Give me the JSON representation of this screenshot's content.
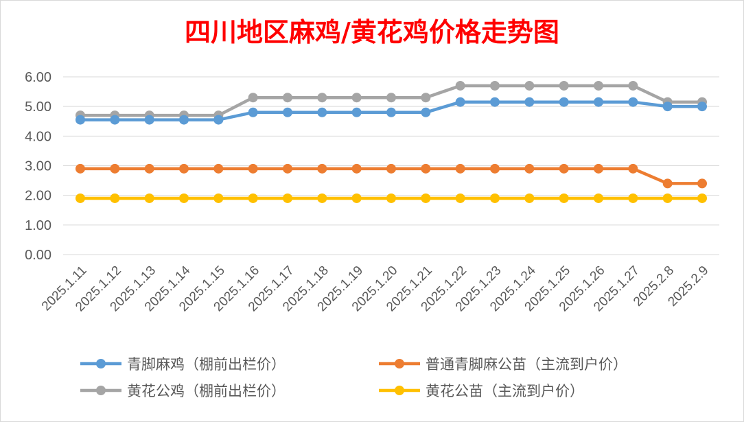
{
  "chart_data": {
    "type": "line",
    "title": "四川地区麻鸡/黄花鸡价格走势图",
    "xlabel": "",
    "ylabel": "",
    "ylim": [
      0,
      6
    ],
    "yticks": [
      "0.00",
      "1.00",
      "2.00",
      "3.00",
      "4.00",
      "5.00",
      "6.00"
    ],
    "grid": true,
    "legend_position": "bottom",
    "categories": [
      "2025.1.11",
      "2025.1.12",
      "2025.1.13",
      "2025.1.14",
      "2025.1.15",
      "2025.1.16",
      "2025.1.17",
      "2025.1.18",
      "2025.1.19",
      "2025.1.20",
      "2025.1.21",
      "2025.1.22",
      "2025.1.23",
      "2025.1.24",
      "2025.1.25",
      "2025.1.26",
      "2025.1.27",
      "2025.2.8",
      "2025.2.9"
    ],
    "series": [
      {
        "name": "青脚麻鸡（棚前出栏价）",
        "color": "#5b9bd5",
        "values": [
          4.55,
          4.55,
          4.55,
          4.55,
          4.55,
          4.8,
          4.8,
          4.8,
          4.8,
          4.8,
          4.8,
          5.15,
          5.15,
          5.15,
          5.15,
          5.15,
          5.15,
          5.0,
          5.0
        ]
      },
      {
        "name": "普通青脚麻公苗（主流到户价）",
        "color": "#ed7d31",
        "values": [
          2.9,
          2.9,
          2.9,
          2.9,
          2.9,
          2.9,
          2.9,
          2.9,
          2.9,
          2.9,
          2.9,
          2.9,
          2.9,
          2.9,
          2.9,
          2.9,
          2.9,
          2.4,
          2.4
        ]
      },
      {
        "name": "黄花公鸡（棚前出栏价）",
        "color": "#a5a5a5",
        "values": [
          4.7,
          4.7,
          4.7,
          4.7,
          4.7,
          5.3,
          5.3,
          5.3,
          5.3,
          5.3,
          5.3,
          5.7,
          5.7,
          5.7,
          5.7,
          5.7,
          5.7,
          5.15,
          5.15
        ]
      },
      {
        "name": "黄花公苗（主流到户价）",
        "color": "#ffc000",
        "values": [
          1.9,
          1.9,
          1.9,
          1.9,
          1.9,
          1.9,
          1.9,
          1.9,
          1.9,
          1.9,
          1.9,
          1.9,
          1.9,
          1.9,
          1.9,
          1.9,
          1.9,
          1.9,
          1.9
        ]
      }
    ]
  }
}
